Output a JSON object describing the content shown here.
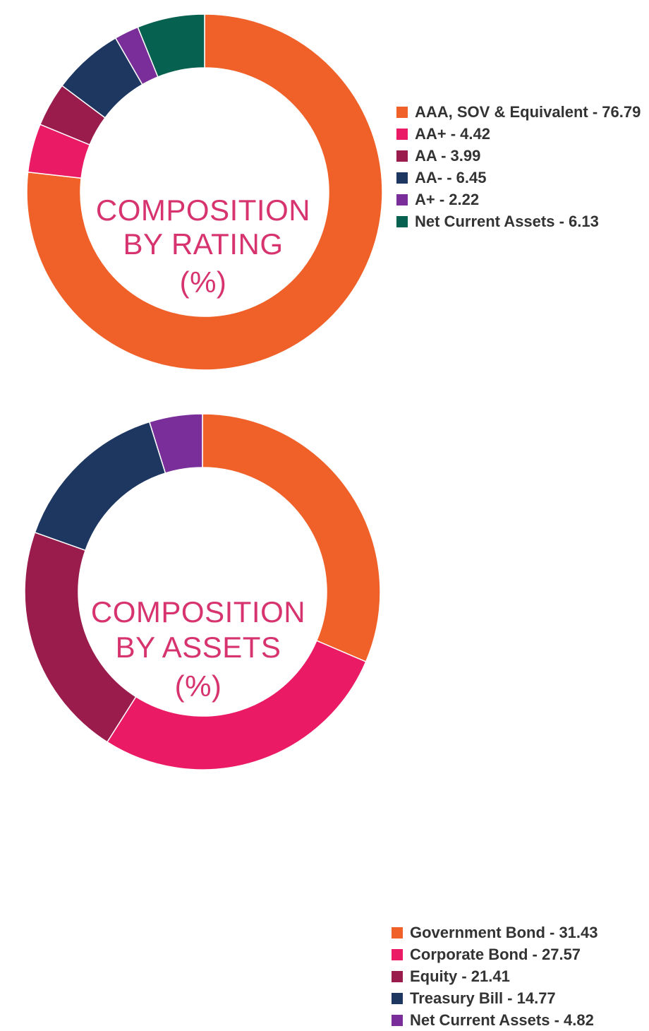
{
  "chart_data": [
    {
      "type": "pie",
      "variant": "donut",
      "center_title": [
        "COMPOSITION",
        "BY RATING",
        "(%)"
      ],
      "start": "top",
      "direction": "clockwise",
      "legend_position": "right",
      "series": [
        {
          "name": "AAA, SOV & Equivalent",
          "value": 76.79,
          "color": "#f0612a",
          "label": "AAA, SOV & Equivalent - 76.79"
        },
        {
          "name": "AA+",
          "value": 4.42,
          "color": "#ea1a64",
          "label": "AA+ - 4.42"
        },
        {
          "name": "AA",
          "value": 3.99,
          "color": "#9a1c4d",
          "label": "AA - 3.99"
        },
        {
          "name": "AA-",
          "value": 6.45,
          "color": "#1d3761",
          "label": "AA- - 6.45"
        },
        {
          "name": "A+",
          "value": 2.22,
          "color": "#7a2e9a",
          "label": "A+ - 2.22"
        },
        {
          "name": "Net Current Assets",
          "value": 6.13,
          "color": "#066150",
          "label": "Net Current Assets - 6.13"
        }
      ]
    },
    {
      "type": "pie",
      "variant": "donut",
      "center_title": [
        "COMPOSITION",
        "BY ASSETS",
        "(%)"
      ],
      "start": "top",
      "direction": "clockwise",
      "legend_position": "right",
      "series": [
        {
          "name": "Government Bond",
          "value": 31.43,
          "color": "#f0612a",
          "label": "Government Bond - 31.43"
        },
        {
          "name": "Corporate Bond",
          "value": 27.57,
          "color": "#ea1a64",
          "label": "Corporate Bond - 27.57"
        },
        {
          "name": "Equity",
          "value": 21.41,
          "color": "#9a1c4d",
          "label": "Equity - 21.41"
        },
        {
          "name": "Treasury Bill",
          "value": 14.77,
          "color": "#1d3761",
          "label": "Treasury Bill - 14.77"
        },
        {
          "name": "Net Current Assets",
          "value": 4.82,
          "color": "#7a2e9a",
          "label": "Net Current Assets - 4.82"
        }
      ]
    }
  ]
}
